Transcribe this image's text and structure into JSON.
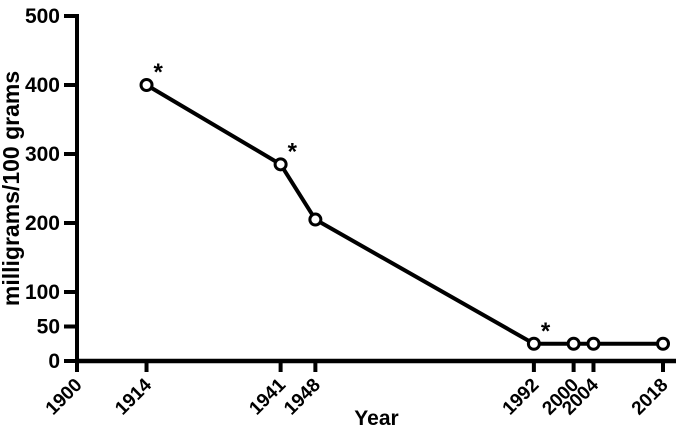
{
  "figure": {
    "background_color": "#ffffff",
    "ink_color": "#000000"
  },
  "chart_data": {
    "type": "line",
    "title": "",
    "xlabel": "Year",
    "ylabel": "milligrams/100 grams",
    "x": [
      1914,
      1941,
      1948,
      1992,
      2000,
      2004,
      2018
    ],
    "values": [
      400,
      285,
      205,
      25,
      25,
      25,
      25
    ],
    "xlim": [
      1900,
      2018
    ],
    "ylim": [
      0,
      500
    ],
    "x_ticks": [
      1900,
      1914,
      1941,
      1948,
      1992,
      2000,
      2004,
      2018
    ],
    "y_ticks": [
      0,
      50,
      100,
      200,
      300,
      400,
      500
    ],
    "annotations": [
      {
        "x": 1914,
        "y": 400,
        "label": "*"
      },
      {
        "x": 1941,
        "y": 285,
        "label": "*"
      },
      {
        "x": 1992,
        "y": 25,
        "label": "*"
      }
    ],
    "grid": false,
    "legend": "none",
    "marker": "open-circle",
    "line_color": "#000000",
    "marker_fill": "#ffffff"
  }
}
